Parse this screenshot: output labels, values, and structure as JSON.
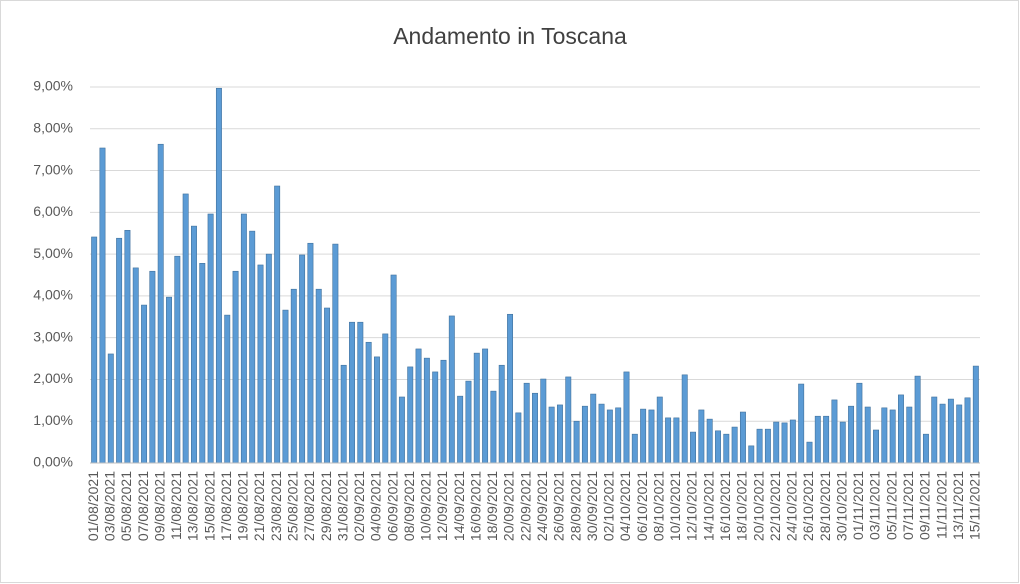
{
  "chart_data": {
    "type": "bar",
    "title": "Andamento in Toscana",
    "categories": [
      "01/08/2021",
      null,
      "03/08/2021",
      null,
      "05/08/2021",
      null,
      "07/08/2021",
      null,
      "09/08/2021",
      null,
      "11/08/2021",
      null,
      "13/08/2021",
      null,
      "15/08/2021",
      null,
      "17/08/2021",
      null,
      "19/08/2021",
      null,
      "21/08/2021",
      null,
      "23/08/2021",
      null,
      "25/08/2021",
      null,
      "27/08/2021",
      null,
      "29/08/2021",
      null,
      "31/08/2021",
      null,
      "02/09/2021",
      null,
      "04/09/2021",
      null,
      "06/09/2021",
      null,
      "08/09/2021",
      null,
      "10/09/2021",
      null,
      "12/09/2021",
      null,
      "14/09/2021",
      null,
      "16/09/2021",
      null,
      "18/09/2021",
      null,
      "20/09/2021",
      null,
      "22/09/2021",
      null,
      "24/09/2021",
      null,
      "26/09/2021",
      null,
      "28/09/2021",
      null,
      "30/09/2021",
      null,
      "02/10/2021",
      null,
      "04/10/2021",
      null,
      "06/10/2021",
      null,
      "08/10/2021",
      null,
      "10/10/2021",
      null,
      "12/10/2021",
      null,
      "14/10/2021",
      null,
      "16/10/2021",
      null,
      "18/10/2021",
      null,
      "20/10/2021",
      null,
      "22/10/2021",
      null,
      "24/10/2021",
      null,
      "26/10/2021",
      null,
      "28/10/2021",
      null,
      "30/10/2021",
      null,
      "01/11/2021",
      null,
      "03/11/2021",
      null,
      "05/11/2021",
      null,
      "07/11/2021",
      null,
      "09/11/2021",
      null,
      "11/11/2021",
      null,
      "13/11/2021",
      null,
      "15/11/2021"
    ],
    "values": [
      5.41,
      7.54,
      2.61,
      5.38,
      5.57,
      4.67,
      3.78,
      4.59,
      7.63,
      3.97,
      4.95,
      6.44,
      5.67,
      4.78,
      5.96,
      8.97,
      3.54,
      4.59,
      5.96,
      5.55,
      4.74,
      5.0,
      6.63,
      3.66,
      4.16,
      4.98,
      5.26,
      4.16,
      3.71,
      5.24,
      2.34,
      3.37,
      3.37,
      2.89,
      2.54,
      3.09,
      4.5,
      1.58,
      2.3,
      2.73,
      2.51,
      2.18,
      2.46,
      3.52,
      1.6,
      1.96,
      2.63,
      2.73,
      1.72,
      2.34,
      3.56,
      1.2,
      1.91,
      1.67,
      2.01,
      1.34,
      1.39,
      2.06,
      1.0,
      1.36,
      1.65,
      1.41,
      1.27,
      1.32,
      2.18,
      0.69,
      1.29,
      1.27,
      1.58,
      1.08,
      1.08,
      2.11,
      0.74,
      1.27,
      1.05,
      0.77,
      0.69,
      0.86,
      1.22,
      0.41,
      0.81,
      0.81,
      0.98,
      0.96,
      1.03,
      1.89,
      0.5,
      1.12,
      1.12,
      1.51,
      0.98,
      1.36,
      1.91,
      1.34,
      0.79,
      1.32,
      1.27,
      1.63,
      1.34,
      2.08,
      0.69,
      1.58,
      1.41,
      1.53,
      1.39,
      1.56,
      2.32
    ],
    "color": "#5b9bd5",
    "ylim": [
      0,
      9
    ],
    "yticks": [
      {
        "value": 0,
        "label": "0,00%"
      },
      {
        "value": 1,
        "label": "1,00%"
      },
      {
        "value": 2,
        "label": "2,00%"
      },
      {
        "value": 3,
        "label": "3,00%"
      },
      {
        "value": 4,
        "label": "4,00%"
      },
      {
        "value": 5,
        "label": "5,00%"
      },
      {
        "value": 6,
        "label": "6,00%"
      },
      {
        "value": 7,
        "label": "7,00%"
      },
      {
        "value": 8,
        "label": "8,00%"
      },
      {
        "value": 9,
        "label": "9,00%"
      }
    ],
    "grid": true
  }
}
